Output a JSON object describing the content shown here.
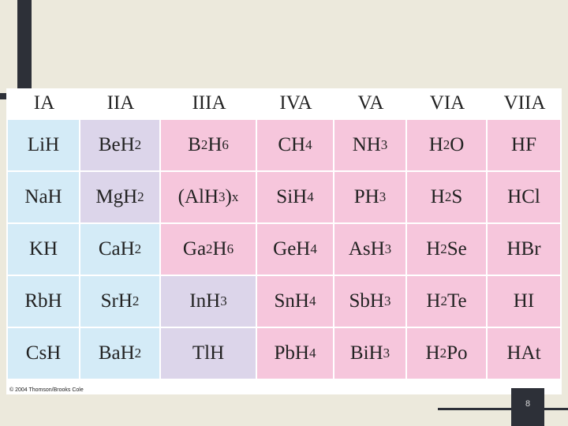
{
  "table": {
    "header": [
      "IA",
      "IIA",
      "IIIA",
      "IVA",
      "VA",
      "VIA",
      "VIIA"
    ],
    "rows": [
      [
        "LiH",
        "BeH2",
        "B2H6",
        "CH4",
        "NH3",
        "H2O",
        "HF"
      ],
      [
        "NaH",
        "MgH2",
        "(AlH3)x",
        "SiH4",
        "PH3",
        "H2S",
        "HCl"
      ],
      [
        "KH",
        "CaH2",
        "Ga2H6",
        "GeH4",
        "AsH3",
        "H2Se",
        "HBr"
      ],
      [
        "RbH",
        "SrH2",
        "InH3",
        "SnH4",
        "SbH3",
        "H2Te",
        "HI"
      ],
      [
        "CsH",
        "BaH2",
        "TlH",
        "PbH4",
        "BiH3",
        "H2Po",
        "HAt"
      ]
    ],
    "cell_colors": [
      [
        "#d4ebf7",
        "#dcd5ea",
        "#f6c6dc",
        "#f6c6dc",
        "#f6c6dc",
        "#f6c6dc",
        "#f6c6dc"
      ],
      [
        "#d4ebf7",
        "#dcd5ea",
        "#f6c6dc",
        "#f6c6dc",
        "#f6c6dc",
        "#f6c6dc",
        "#f6c6dc"
      ],
      [
        "#d4ebf7",
        "#d4ebf7",
        "#f6c6dc",
        "#f6c6dc",
        "#f6c6dc",
        "#f6c6dc",
        "#f6c6dc"
      ],
      [
        "#d4ebf7",
        "#d4ebf7",
        "#dcd5ea",
        "#f6c6dc",
        "#f6c6dc",
        "#f6c6dc",
        "#f6c6dc"
      ],
      [
        "#d4ebf7",
        "#d4ebf7",
        "#dcd5ea",
        "#f6c6dc",
        "#f6c6dc",
        "#f6c6dc",
        "#f6c6dc"
      ]
    ],
    "credit": "© 2004 Thomson/Brooks Cole"
  },
  "slide_number": "8"
}
